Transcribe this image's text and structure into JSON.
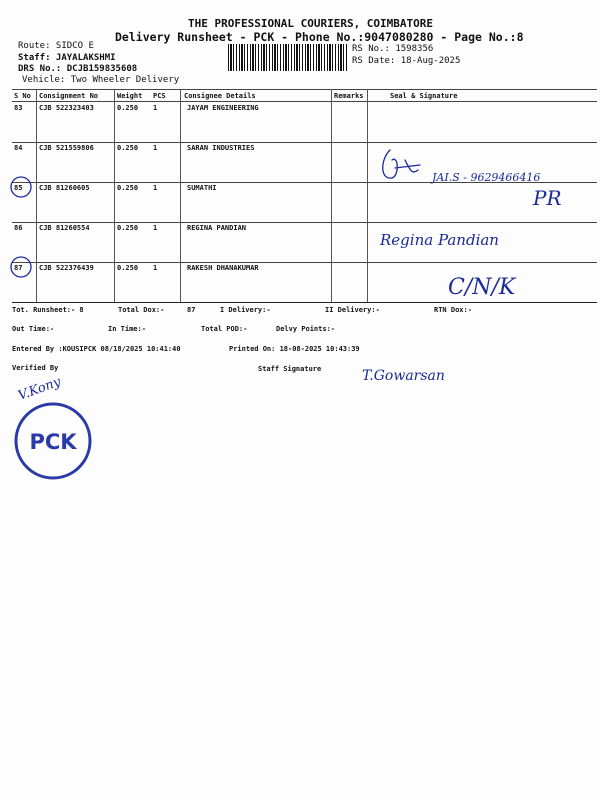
{
  "header": {
    "company": "THE PROFESSIONAL COURIERS, COIMBATORE",
    "subtitle": "Delivery Runsheet - PCK - Phone No.:9047080280 - Page No.:8",
    "route": "Route: SIDCO E",
    "staff": "Staff: JAYALAKSHMI",
    "drs": "DRS No.: DCJB159835608",
    "vehicle": "Vehicle: Two Wheeler Delivery",
    "rs_no": "RS No.: 1598356",
    "rs_date": "RS Date: 18-Aug-2025"
  },
  "table": {
    "columns": [
      "S No",
      "Consignment No",
      "Weight",
      "PCS",
      "Consignee Details",
      "Remarks",
      "Seal & Signature"
    ],
    "rows": [
      {
        "sno": "83",
        "consignment": "CJB 522323403",
        "weight": "0.250",
        "pcs": "1",
        "consignee": "JAYAM ENGINEERING",
        "circled": false
      },
      {
        "sno": "84",
        "consignment": "CJB 521559806",
        "weight": "0.250",
        "pcs": "1",
        "consignee": "SARAN INDUSTRIES",
        "circled": false
      },
      {
        "sno": "85",
        "consignment": "CJB 81260605",
        "weight": "0.250",
        "pcs": "1",
        "consignee": "SUMATHI",
        "circled": true
      },
      {
        "sno": "86",
        "consignment": "CJB 81260554",
        "weight": "0.250",
        "pcs": "1",
        "consignee": "REGINA PANDIAN",
        "circled": false
      },
      {
        "sno": "87",
        "consignment": "CJB 522376439",
        "weight": "0.250",
        "pcs": "1",
        "consignee": "RAKESH DHANAKUMAR",
        "circled": true
      }
    ]
  },
  "handwriting": {
    "row84": "JAI.S - 9629466416",
    "row85": "PR",
    "row86": "Regina Pandian",
    "row87": "C/N/K",
    "staff_signature": "T.Gowarsan",
    "verified_signature": "V.Kony"
  },
  "footer": {
    "tot_runsheet": "Tot. Runsheet:- 8",
    "total_dox": "Total Dox:-",
    "total_dox_value": "87",
    "i_delivery": "I Delivery:-",
    "ii_delivery": "II Delivery:-",
    "rtn_dox": "RTN Dox:-",
    "out_time": "Out Time:-",
    "in_time": "In Time:-",
    "total_pod": "Total POD:-",
    "delvy_points": "Delvy Points:-",
    "entered_by": "Entered By :KOUSIPCK 08/18/2025 10:41:40",
    "printed_on": "Printed On: 18-08-2025 10:43:39",
    "verified_by": "Verified By",
    "staff_signature": "Staff Signature"
  },
  "stamp": {
    "text": "PCK"
  },
  "colors": {
    "ink": "#111111",
    "pen": "#1a2a9a"
  }
}
